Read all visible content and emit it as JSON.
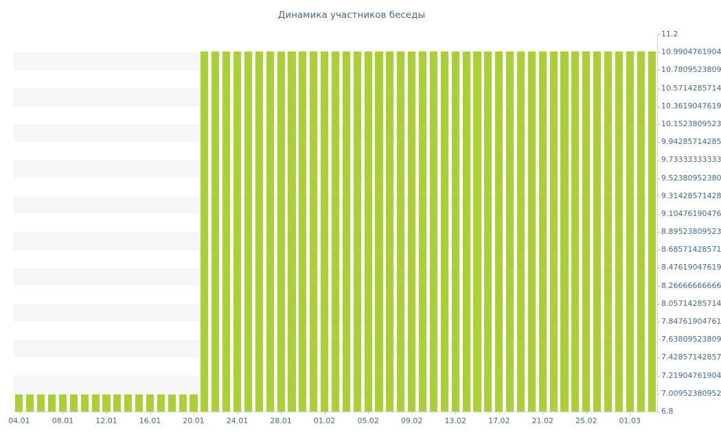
{
  "chart_data": {
    "type": "bar",
    "title": "Динамика участников беседы",
    "xlabel": "",
    "ylabel": "",
    "ylim": [
      6.8,
      11.2
    ],
    "grid": "horizontal-stripes",
    "legend": "none",
    "x_tick_every": 4,
    "colors": {
      "bar": "#abd037",
      "stripe": "#f6f6f6",
      "axis": "#c9d4de",
      "text": "#45688e",
      "background": "#ffffff"
    },
    "categories": [
      "04.01",
      "05.01",
      "06.01",
      "07.01",
      "08.01",
      "09.01",
      "10.01",
      "11.01",
      "12.01",
      "13.01",
      "14.01",
      "15.01",
      "16.01",
      "17.01",
      "18.01",
      "19.01",
      "20.01",
      "21.01",
      "22.01",
      "23.01",
      "24.01",
      "25.01",
      "26.01",
      "27.01",
      "28.01",
      "29.01",
      "30.01",
      "31.01",
      "01.02",
      "02.02",
      "03.02",
      "04.02",
      "05.02",
      "06.02",
      "07.02",
      "08.02",
      "09.02",
      "10.02",
      "11.02",
      "12.02",
      "13.02",
      "14.02",
      "15.02",
      "16.02",
      "17.02",
      "18.02",
      "19.02",
      "20.02",
      "21.02",
      "22.02",
      "23.02",
      "24.02",
      "25.02",
      "26.02",
      "27.02",
      "28.02",
      "01.03",
      "02.03",
      "03.03"
    ],
    "values": [
      7,
      7,
      7,
      7,
      7,
      7,
      7,
      7,
      7,
      7,
      7,
      7,
      7,
      7,
      7,
      7,
      7,
      11,
      11,
      11,
      11,
      11,
      11,
      11,
      11,
      11,
      11,
      11,
      11,
      11,
      11,
      11,
      11,
      11,
      11,
      11,
      11,
      11,
      11,
      11,
      11,
      11,
      11,
      11,
      11,
      11,
      11,
      11,
      11,
      11,
      11,
      11,
      11,
      11,
      11,
      11,
      11,
      11,
      11
    ],
    "y_ticks": [
      "11.2",
      "10.9904761904",
      "10.7809523809",
      "10.5714285714",
      "10.3619047619",
      "10.1523809523",
      "9.94285714285",
      "9.73333333333",
      "9.52380952380",
      "9.31428571428",
      "9.10476190476",
      "8.89523809523",
      "8.68571428571",
      "8.47619047619",
      "8.26666666666",
      "8.05714285714",
      "7.84761904761",
      "7.63809523809",
      "7.42857142857",
      "7.21904761904",
      "7.00952380952",
      "6.8"
    ]
  }
}
